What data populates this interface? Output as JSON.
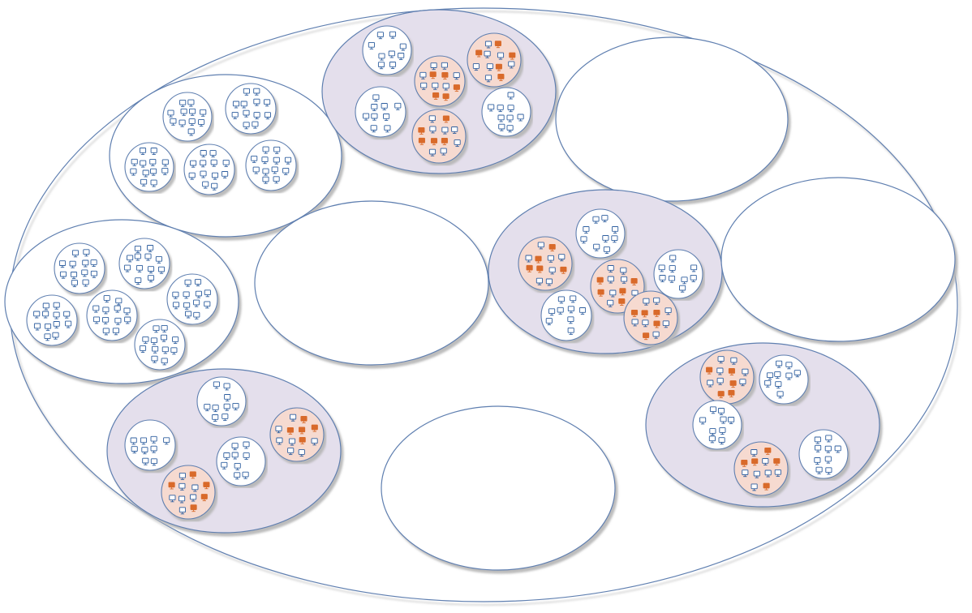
{
  "diagram": {
    "type": "nested-cluster-ellipses",
    "colors": {
      "outline": "#5f7fb0",
      "shadow": "#b5b5b5",
      "highlighted_cluster_fill": "#e4dfec",
      "infected_subcluster_fill": "#f6dad0",
      "node_outline": "#2f5f9f",
      "infected_node_fill": "#d96a2a"
    },
    "icon": "computer-node-icon",
    "clusters": [
      {
        "name": "cluster-left-upper",
        "highlighted": false,
        "subclusters": [
          {
            "nodes": 12,
            "infected": 0
          },
          {
            "nodes": 12,
            "infected": 0
          },
          {
            "nodes": 12,
            "infected": 0
          },
          {
            "nodes": 12,
            "infected": 0
          },
          {
            "nodes": 12,
            "infected": 0
          }
        ]
      },
      {
        "name": "cluster-top-center",
        "highlighted": true,
        "subclusters": [
          {
            "nodes": 9,
            "infected": 0
          },
          {
            "nodes": 12,
            "infected": 5
          },
          {
            "nodes": 12,
            "infected": 5
          },
          {
            "nodes": 9,
            "infected": 0
          },
          {
            "nodes": 9,
            "infected": 0
          },
          {
            "nodes": 12,
            "infected": 5
          }
        ]
      },
      {
        "name": "cluster-top-right-empty",
        "highlighted": false,
        "subclusters": []
      },
      {
        "name": "cluster-left-middle",
        "highlighted": false,
        "subclusters": [
          {
            "nodes": 12,
            "infected": 0
          },
          {
            "nodes": 12,
            "infected": 0
          },
          {
            "nodes": 12,
            "infected": 0
          },
          {
            "nodes": 12,
            "infected": 0
          },
          {
            "nodes": 12,
            "infected": 0
          },
          {
            "nodes": 12,
            "infected": 0
          }
        ]
      },
      {
        "name": "cluster-center-empty",
        "highlighted": false,
        "subclusters": []
      },
      {
        "name": "cluster-center-right",
        "highlighted": true,
        "subclusters": [
          {
            "nodes": 9,
            "infected": 0
          },
          {
            "nodes": 12,
            "infected": 5
          },
          {
            "nodes": 12,
            "infected": 5
          },
          {
            "nodes": 9,
            "infected": 0
          },
          {
            "nodes": 9,
            "infected": 0
          },
          {
            "nodes": 12,
            "infected": 5
          }
        ]
      },
      {
        "name": "cluster-right-empty",
        "highlighted": false,
        "subclusters": []
      },
      {
        "name": "cluster-bottom-left",
        "highlighted": true,
        "subclusters": [
          {
            "nodes": 9,
            "infected": 0
          },
          {
            "nodes": 9,
            "infected": 0
          },
          {
            "nodes": 12,
            "infected": 5
          },
          {
            "nodes": 9,
            "infected": 0
          },
          {
            "nodes": 12,
            "infected": 5
          }
        ]
      },
      {
        "name": "cluster-bottom-center-empty",
        "highlighted": false,
        "subclusters": []
      },
      {
        "name": "cluster-bottom-right",
        "highlighted": true,
        "subclusters": [
          {
            "nodes": 12,
            "infected": 5
          },
          {
            "nodes": 9,
            "infected": 0
          },
          {
            "nodes": 9,
            "infected": 0
          },
          {
            "nodes": 12,
            "infected": 5
          },
          {
            "nodes": 9,
            "infected": 0
          }
        ]
      }
    ]
  }
}
